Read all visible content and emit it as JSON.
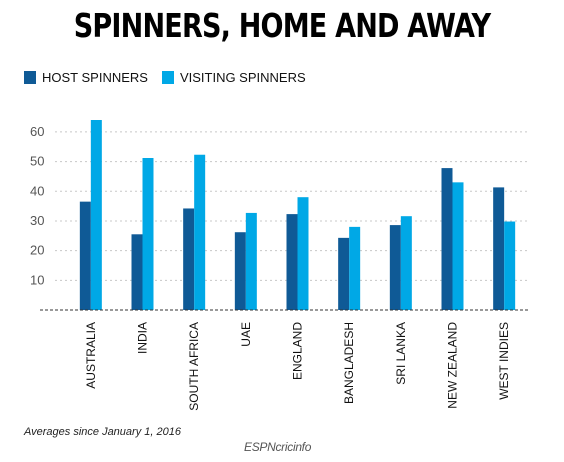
{
  "chart_data": {
    "type": "bar",
    "title": "SPINNERS, HOME AND AWAY",
    "categories": [
      "AUSTRALIA",
      "INDIA",
      "SOUTH AFRICA",
      "UAE",
      "ENGLAND",
      "BANGLADESH",
      "SRI LANKA",
      "NEW ZEALAND",
      "WEST INDIES"
    ],
    "series": [
      {
        "name": "HOST SPINNERS",
        "color": "#0f5a96",
        "values": [
          36.5,
          25.5,
          34.2,
          26.2,
          32.3,
          24.3,
          28.6,
          47.8,
          41.3
        ]
      },
      {
        "name": "VISITING SPINNERS",
        "color": "#00a8e6",
        "values": [
          64.0,
          51.2,
          52.3,
          32.7,
          38.0,
          28.0,
          31.6,
          43.0,
          29.8
        ]
      }
    ],
    "yticks": [
      10,
      20,
      30,
      40,
      50,
      60
    ],
    "ylim": [
      0,
      64
    ],
    "grid": true,
    "legend": "top-left"
  },
  "note": "Averages since January 1, 2016",
  "logo": {
    "brand": "ESPN",
    "name": "cricinfo"
  }
}
